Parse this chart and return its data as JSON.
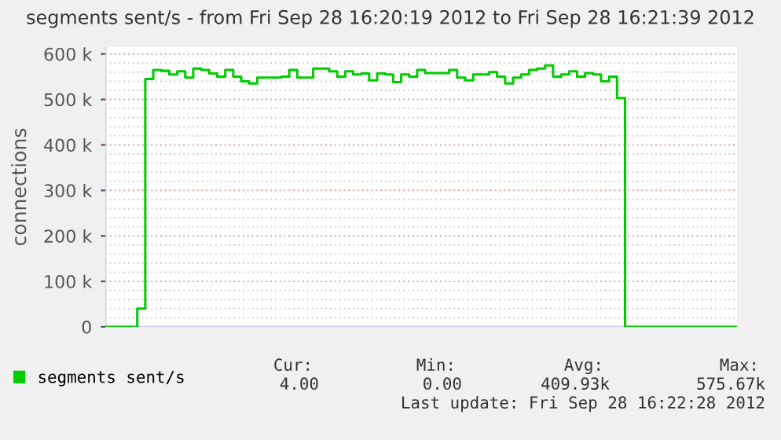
{
  "chart_data": {
    "type": "step",
    "title": "segments sent/s - from Fri Sep 28 16:20:19 2012 to Fri Sep 28 16:21:39 2012",
    "ylabel": "connections",
    "categories": [
      null,
      null,
      null,
      null,
      null,
      null,
      null,
      null,
      null,
      null,
      null,
      null,
      null,
      null,
      null,
      null,
      null,
      null,
      null,
      null,
      null,
      null,
      null,
      null,
      null,
      null,
      null,
      null,
      null,
      null,
      null,
      null,
      null,
      null,
      null,
      null,
      null,
      null,
      null,
      null,
      null,
      null,
      null,
      null,
      null,
      null,
      null,
      null,
      null,
      null,
      null,
      null,
      null,
      null,
      null,
      null,
      null,
      null,
      null,
      null,
      null,
      null,
      null,
      null,
      null,
      null,
      null,
      null,
      null,
      null,
      null,
      null,
      null,
      null,
      null,
      null,
      null,
      null,
      null,
      null
    ],
    "series": [
      {
        "name": "segments sent/s",
        "color": "#00cc00",
        "values": [
          0,
          0,
          0,
          0,
          40000,
          545000,
          565000,
          563000,
          555000,
          562000,
          548000,
          568000,
          565000,
          557000,
          550000,
          565000,
          550000,
          540000,
          535000,
          548000,
          548000,
          548000,
          550000,
          565000,
          548000,
          548000,
          568000,
          568000,
          562000,
          550000,
          562000,
          555000,
          557000,
          542000,
          557000,
          555000,
          538000,
          555000,
          550000,
          565000,
          558000,
          558000,
          558000,
          565000,
          548000,
          542000,
          555000,
          555000,
          560000,
          550000,
          535000,
          548000,
          555000,
          565000,
          568000,
          575000,
          550000,
          555000,
          562000,
          550000,
          558000,
          555000,
          540000,
          550000,
          503000,
          0,
          0,
          0,
          0,
          0,
          0,
          0,
          0,
          0,
          0,
          0,
          0,
          0,
          0,
          0
        ]
      }
    ],
    "ylim": [
      0,
      615000
    ],
    "yticks": [
      {
        "value": 0,
        "label": "0"
      },
      {
        "value": 100000,
        "label": "100 k"
      },
      {
        "value": 200000,
        "label": "200 k"
      },
      {
        "value": 300000,
        "label": "300 k"
      },
      {
        "value": 400000,
        "label": "400 k"
      },
      {
        "value": 500000,
        "label": "500 k"
      },
      {
        "value": 600000,
        "label": "600 k"
      }
    ],
    "grid": "y",
    "legend": "bottom left",
    "annotations": [
      "Cur:",
      "Min:",
      "Avg:",
      "Max:",
      "4.00",
      "0.00",
      "409.93k",
      "575.67k",
      "Last update: Fri Sep 28 16:22:28 2012"
    ]
  }
}
